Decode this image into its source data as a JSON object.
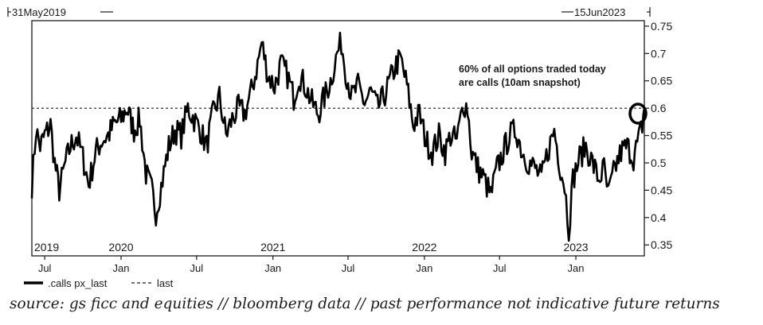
{
  "chart_data": {
    "type": "line",
    "range_start": "31May2019",
    "range_end": "15Jun2023",
    "ylim": [
      0.33,
      0.76
    ],
    "y_ticks": [
      0.35,
      0.4,
      0.45,
      0.5,
      0.55,
      0.6,
      0.65,
      0.7,
      0.75
    ],
    "y_tick_labels": [
      "0.35",
      "0.4",
      "0.45",
      "0.5",
      "0.55",
      "0.6",
      "0.65",
      "0.7",
      "0.75"
    ],
    "x_ticks": [
      {
        "date": "2019-07-01",
        "label": "Jul"
      },
      {
        "date": "2020-01-01",
        "label": "Jan"
      },
      {
        "date": "2020-07-01",
        "label": "Jul"
      },
      {
        "date": "2021-01-01",
        "label": "Jan"
      },
      {
        "date": "2021-07-01",
        "label": "Jul"
      },
      {
        "date": "2022-01-01",
        "label": "Jan"
      },
      {
        "date": "2022-07-01",
        "label": "Jul"
      },
      {
        "date": "2023-01-01",
        "label": "Jan"
      }
    ],
    "year_labels": [
      {
        "date": "2019-05-31",
        "label": "2019"
      },
      {
        "date": "2020-01-01",
        "label": "2020"
      },
      {
        "date": "2021-01-01",
        "label": "2021"
      },
      {
        "date": "2022-01-01",
        "label": "2022"
      },
      {
        "date": "2023-01-01",
        "label": "2023"
      }
    ],
    "reference_line": {
      "name": "last",
      "value": 0.6,
      "style": "dashed"
    },
    "series": [
      {
        "name": ".calls px_last",
        "color": "#000000",
        "points": [
          [
            "2019-05-31",
            0.46
          ],
          [
            "2019-06-10",
            0.56
          ],
          [
            "2019-06-20",
            0.53
          ],
          [
            "2019-07-01",
            0.55
          ],
          [
            "2019-07-15",
            0.57
          ],
          [
            "2019-07-25",
            0.5
          ],
          [
            "2019-08-05",
            0.45
          ],
          [
            "2019-08-20",
            0.5
          ],
          [
            "2019-09-01",
            0.53
          ],
          [
            "2019-09-15",
            0.55
          ],
          [
            "2019-10-01",
            0.51
          ],
          [
            "2019-10-15",
            0.46
          ],
          [
            "2019-11-01",
            0.52
          ],
          [
            "2019-11-15",
            0.54
          ],
          [
            "2019-12-01",
            0.55
          ],
          [
            "2019-12-15",
            0.57
          ],
          [
            "2020-01-01",
            0.58
          ],
          [
            "2020-01-15",
            0.6
          ],
          [
            "2020-02-01",
            0.56
          ],
          [
            "2020-02-15",
            0.58
          ],
          [
            "2020-03-01",
            0.48
          ],
          [
            "2020-03-15",
            0.45
          ],
          [
            "2020-03-25",
            0.41
          ],
          [
            "2020-04-10",
            0.47
          ],
          [
            "2020-04-25",
            0.53
          ],
          [
            "2020-05-10",
            0.56
          ],
          [
            "2020-05-25",
            0.55
          ],
          [
            "2020-06-10",
            0.6
          ],
          [
            "2020-06-25",
            0.58
          ],
          [
            "2020-07-10",
            0.56
          ],
          [
            "2020-07-25",
            0.53
          ],
          [
            "2020-08-10",
            0.59
          ],
          [
            "2020-08-25",
            0.62
          ],
          [
            "2020-09-10",
            0.55
          ],
          [
            "2020-09-25",
            0.58
          ],
          [
            "2020-10-10",
            0.6
          ],
          [
            "2020-10-25",
            0.59
          ],
          [
            "2020-11-10",
            0.63
          ],
          [
            "2020-11-25",
            0.68
          ],
          [
            "2020-12-05",
            0.72
          ],
          [
            "2020-12-20",
            0.66
          ],
          [
            "2021-01-05",
            0.64
          ],
          [
            "2021-01-20",
            0.68
          ],
          [
            "2021-02-05",
            0.66
          ],
          [
            "2021-02-20",
            0.62
          ],
          [
            "2021-03-05",
            0.66
          ],
          [
            "2021-03-20",
            0.64
          ],
          [
            "2021-04-05",
            0.61
          ],
          [
            "2021-04-20",
            0.59
          ],
          [
            "2021-05-05",
            0.62
          ],
          [
            "2021-05-20",
            0.65
          ],
          [
            "2021-06-05",
            0.7
          ],
          [
            "2021-06-15",
            0.72
          ],
          [
            "2021-06-25",
            0.67
          ],
          [
            "2021-07-10",
            0.62
          ],
          [
            "2021-07-25",
            0.64
          ],
          [
            "2021-08-10",
            0.61
          ],
          [
            "2021-08-25",
            0.63
          ],
          [
            "2021-09-10",
            0.6
          ],
          [
            "2021-09-25",
            0.62
          ],
          [
            "2021-10-10",
            0.65
          ],
          [
            "2021-10-25",
            0.68
          ],
          [
            "2021-11-05",
            0.69
          ],
          [
            "2021-11-20",
            0.64
          ],
          [
            "2021-12-05",
            0.57
          ],
          [
            "2021-12-20",
            0.59
          ],
          [
            "2022-01-05",
            0.54
          ],
          [
            "2022-01-20",
            0.52
          ],
          [
            "2022-02-05",
            0.55
          ],
          [
            "2022-02-20",
            0.52
          ],
          [
            "2022-03-05",
            0.55
          ],
          [
            "2022-03-20",
            0.54
          ],
          [
            "2022-04-05",
            0.61
          ],
          [
            "2022-04-15",
            0.6
          ],
          [
            "2022-04-25",
            0.52
          ],
          [
            "2022-05-10",
            0.49
          ],
          [
            "2022-05-25",
            0.47
          ],
          [
            "2022-06-10",
            0.44
          ],
          [
            "2022-06-25",
            0.49
          ],
          [
            "2022-07-10",
            0.52
          ],
          [
            "2022-07-25",
            0.55
          ],
          [
            "2022-08-10",
            0.56
          ],
          [
            "2022-08-25",
            0.52
          ],
          [
            "2022-09-10",
            0.5
          ],
          [
            "2022-09-25",
            0.49
          ],
          [
            "2022-10-10",
            0.47
          ],
          [
            "2022-10-25",
            0.52
          ],
          [
            "2022-11-10",
            0.56
          ],
          [
            "2022-11-25",
            0.49
          ],
          [
            "2022-12-05",
            0.46
          ],
          [
            "2022-12-15",
            0.38
          ],
          [
            "2022-12-25",
            0.47
          ],
          [
            "2023-01-10",
            0.51
          ],
          [
            "2023-01-25",
            0.53
          ],
          [
            "2023-02-10",
            0.5
          ],
          [
            "2023-02-25",
            0.47
          ],
          [
            "2023-03-10",
            0.49
          ],
          [
            "2023-03-20",
            0.44
          ],
          [
            "2023-04-05",
            0.49
          ],
          [
            "2023-04-20",
            0.52
          ],
          [
            "2023-05-05",
            0.53
          ],
          [
            "2023-05-20",
            0.51
          ],
          [
            "2023-06-01",
            0.54
          ],
          [
            "2023-06-10",
            0.57
          ],
          [
            "2023-06-15",
            0.6
          ]
        ]
      }
    ],
    "annotation": {
      "lines": [
        "60% of all options traded today",
        "are calls (10am snapshot)"
      ],
      "target": [
        "2023-06-15",
        0.59
      ]
    },
    "legend": {
      "placement": "bottom-left",
      "items": [
        {
          "label": ".calls px_last",
          "style": "solid"
        },
        {
          "label": "last",
          "style": "dashed"
        }
      ]
    },
    "grid": false
  },
  "source_text": "source: gs ficc and equities // bloomberg data // past performance not indicative future returns"
}
